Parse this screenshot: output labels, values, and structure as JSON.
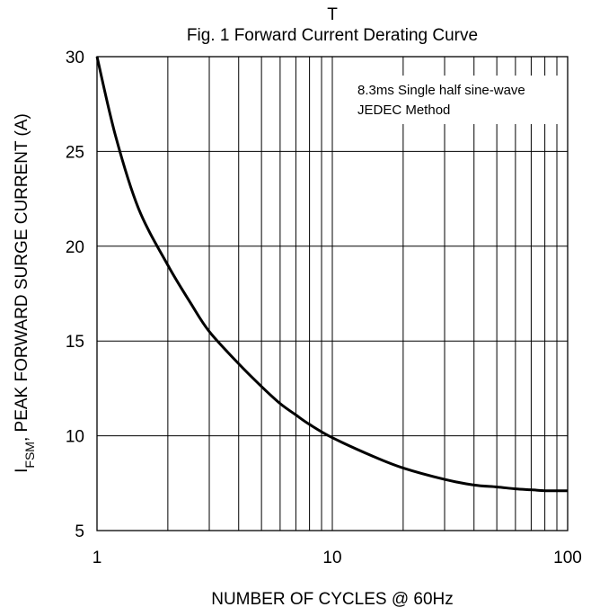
{
  "chart_data": {
    "type": "line",
    "figure_mark": "T",
    "title": "Fig. 1  Forward Current Derating Curve",
    "xlabel": "NUMBER OF CYCLES @ 60Hz",
    "ylabel": {
      "main": "I",
      "subscript": "FSM",
      "rest": ", PEAK FORWARD SURGE CURRENT (A)"
    },
    "x_scale": "log",
    "xlim": [
      1,
      100
    ],
    "ylim": [
      5,
      30
    ],
    "x_ticks": [
      1,
      10,
      100
    ],
    "x_tick_labels": [
      "1",
      "10",
      "100"
    ],
    "y_ticks": [
      5,
      10,
      15,
      20,
      25,
      30
    ],
    "y_tick_labels": [
      "5",
      "10",
      "15",
      "20",
      "25",
      "30"
    ],
    "grid": true,
    "annotation": [
      "8.3ms Single half sine-wave",
      "JEDEC Method"
    ],
    "annotation_placement": "top-right",
    "series": [
      {
        "x": [
          1,
          1.2,
          1.5,
          2,
          2.5,
          3,
          4,
          5,
          6,
          7,
          8,
          10,
          15,
          20,
          30,
          40,
          50,
          60,
          70,
          80,
          90,
          100
        ],
        "y": [
          30,
          25.8,
          22,
          19,
          17,
          15.5,
          13.8,
          12.6,
          11.7,
          11.1,
          10.6,
          9.9,
          8.9,
          8.3,
          7.7,
          7.4,
          7.3,
          7.2,
          7.15,
          7.1,
          7.1,
          7.1
        ]
      }
    ]
  }
}
